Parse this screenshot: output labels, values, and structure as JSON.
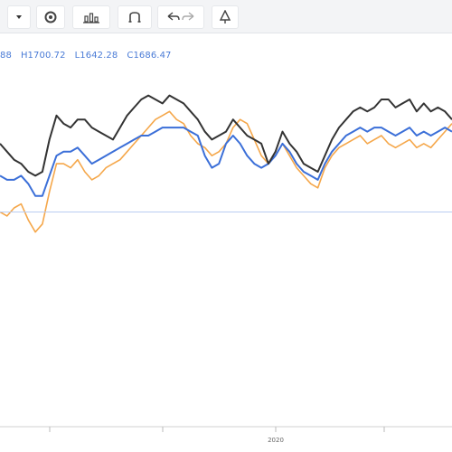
{
  "toolbar": {
    "buttons": [
      {
        "id": "dropdown",
        "icon": "caret-down-icon"
      },
      {
        "id": "settings",
        "icon": "gear-icon"
      },
      {
        "id": "indicators",
        "icon": "bar-chart-icon"
      },
      {
        "id": "compare",
        "icon": "magnet-icon"
      },
      {
        "id": "undo-redo",
        "icon": "undo-icon"
      },
      {
        "id": "fullscreen",
        "icon": "tree-icon"
      }
    ]
  },
  "ohlc": {
    "open": "88",
    "high": "H1700.72",
    "low": "L1642.28",
    "close": "C1686.47"
  },
  "chart_data": {
    "type": "line",
    "x_tick_labels": [
      "2020"
    ],
    "series": [
      {
        "color": "#333333",
        "values": [
          1700,
          1696,
          1692,
          1690,
          1686,
          1684,
          1686,
          1702,
          1714,
          1710,
          1708,
          1712,
          1712,
          1708,
          1706,
          1704,
          1702,
          1708,
          1714,
          1718,
          1722,
          1724,
          1722,
          1720,
          1724,
          1722,
          1720,
          1716,
          1712,
          1706,
          1702,
          1704,
          1706,
          1712,
          1708,
          1704,
          1702,
          1700,
          1690,
          1696,
          1706,
          1700,
          1696,
          1690,
          1688,
          1686,
          1694,
          1702,
          1708,
          1712,
          1716,
          1718,
          1716,
          1718,
          1722,
          1722,
          1718,
          1720,
          1722,
          1716,
          1720,
          1716,
          1718,
          1716,
          1712
        ]
      },
      {
        "color": "#3b6fd8",
        "values": [
          1684,
          1682,
          1682,
          1684,
          1680,
          1674,
          1674,
          1684,
          1694,
          1696,
          1696,
          1698,
          1694,
          1690,
          1692,
          1694,
          1696,
          1698,
          1700,
          1702,
          1704,
          1704,
          1706,
          1708,
          1708,
          1708,
          1708,
          1706,
          1704,
          1694,
          1688,
          1690,
          1700,
          1704,
          1700,
          1694,
          1690,
          1688,
          1690,
          1694,
          1700,
          1696,
          1690,
          1686,
          1684,
          1682,
          1690,
          1696,
          1700,
          1704,
          1706,
          1708,
          1706,
          1708,
          1708,
          1706,
          1704,
          1706,
          1708,
          1704,
          1706,
          1704,
          1706,
          1708,
          1706
        ]
      },
      {
        "color": "#f5a74a",
        "values": [
          1666,
          1664,
          1668,
          1670,
          1662,
          1656,
          1660,
          1676,
          1690,
          1690,
          1688,
          1692,
          1686,
          1682,
          1684,
          1688,
          1690,
          1692,
          1696,
          1700,
          1704,
          1708,
          1712,
          1714,
          1716,
          1712,
          1710,
          1704,
          1700,
          1698,
          1694,
          1696,
          1700,
          1708,
          1712,
          1710,
          1702,
          1694,
          1690,
          1694,
          1700,
          1694,
          1688,
          1684,
          1680,
          1678,
          1688,
          1694,
          1698,
          1700,
          1702,
          1704,
          1700,
          1702,
          1704,
          1700,
          1698,
          1700,
          1702,
          1698,
          1700,
          1698,
          1702,
          1706,
          1710
        ]
      }
    ],
    "reference_line": {
      "color": "#b9cdf2",
      "value": 1666
    }
  }
}
